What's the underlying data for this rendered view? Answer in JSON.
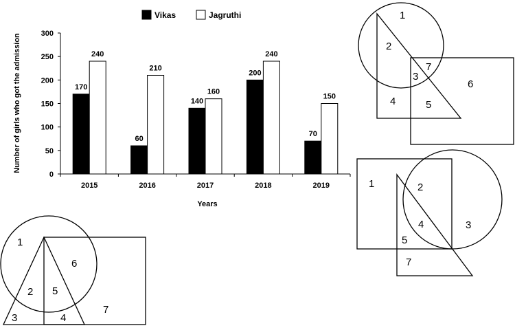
{
  "chart_data": {
    "type": "bar",
    "categories": [
      "2015",
      "2016",
      "2017",
      "2018",
      "2019"
    ],
    "series": [
      {
        "name": "Vikas",
        "values": [
          170,
          60,
          140,
          200,
          70
        ],
        "color": "#000000"
      },
      {
        "name": "Jagruthi",
        "values": [
          240,
          210,
          160,
          240,
          150
        ],
        "color": "#ffffff"
      }
    ],
    "xlabel": "Years",
    "ylabel": "Number of girls who got the admission",
    "ylim": [
      0,
      300
    ],
    "yticks": [
      0,
      50,
      100,
      150,
      200,
      250,
      300
    ],
    "legend_position": "top",
    "grid": false
  },
  "venn_diagrams": [
    {
      "name": "venn-a",
      "region_labels": [
        "1",
        "2",
        "3",
        "4",
        "5",
        "6",
        "7"
      ]
    },
    {
      "name": "venn-b",
      "region_labels": [
        "1",
        "2",
        "3",
        "4",
        "5",
        "7"
      ]
    },
    {
      "name": "venn-c",
      "region_labels": [
        "1",
        "2",
        "3",
        "4",
        "5",
        "6",
        "7"
      ]
    }
  ]
}
